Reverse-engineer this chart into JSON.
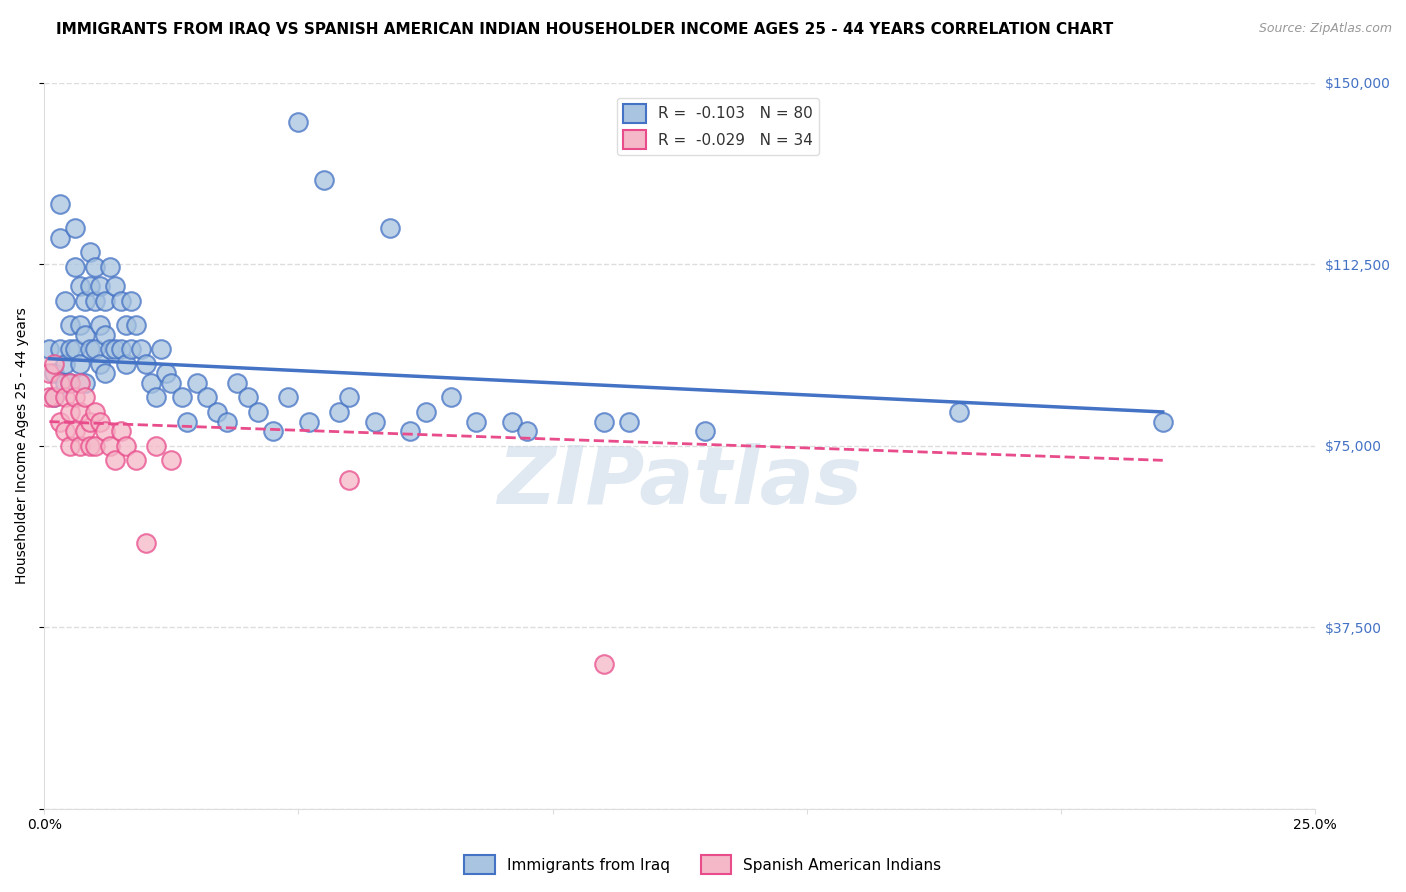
{
  "title": "IMMIGRANTS FROM IRAQ VS SPANISH AMERICAN INDIAN HOUSEHOLDER INCOME AGES 25 - 44 YEARS CORRELATION CHART",
  "source": "Source: ZipAtlas.com",
  "ylabel": "Householder Income Ages 25 - 44 years",
  "xmin": 0.0,
  "xmax": 0.25,
  "ymin": 0,
  "ymax": 150000,
  "yticks": [
    0,
    37500,
    75000,
    112500,
    150000
  ],
  "ytick_labels": [
    "",
    "$37,500",
    "$75,000",
    "$112,500",
    "$150,000"
  ],
  "xticks": [
    0.0,
    0.05,
    0.1,
    0.15,
    0.2,
    0.25
  ],
  "legend_r1": "-0.103",
  "legend_n1": "N = 80",
  "legend_r2": "-0.029",
  "legend_n2": "N = 34",
  "watermark": "ZIPatlas",
  "blue_scatter_x": [
    0.001,
    0.002,
    0.002,
    0.003,
    0.003,
    0.003,
    0.004,
    0.004,
    0.004,
    0.005,
    0.005,
    0.005,
    0.006,
    0.006,
    0.006,
    0.007,
    0.007,
    0.007,
    0.008,
    0.008,
    0.008,
    0.009,
    0.009,
    0.009,
    0.01,
    0.01,
    0.01,
    0.011,
    0.011,
    0.011,
    0.012,
    0.012,
    0.012,
    0.013,
    0.013,
    0.014,
    0.014,
    0.015,
    0.015,
    0.016,
    0.016,
    0.017,
    0.017,
    0.018,
    0.019,
    0.02,
    0.021,
    0.022,
    0.023,
    0.024,
    0.025,
    0.027,
    0.028,
    0.03,
    0.032,
    0.034,
    0.036,
    0.038,
    0.04,
    0.042,
    0.045,
    0.048,
    0.052,
    0.058,
    0.065,
    0.072,
    0.08,
    0.092,
    0.11,
    0.13,
    0.05,
    0.055,
    0.06,
    0.068,
    0.075,
    0.085,
    0.095,
    0.115,
    0.18,
    0.22
  ],
  "blue_scatter_y": [
    95000,
    90000,
    85000,
    125000,
    118000,
    95000,
    105000,
    92000,
    88000,
    100000,
    95000,
    88000,
    120000,
    112000,
    95000,
    108000,
    100000,
    92000,
    105000,
    98000,
    88000,
    115000,
    108000,
    95000,
    112000,
    105000,
    95000,
    108000,
    100000,
    92000,
    105000,
    98000,
    90000,
    112000,
    95000,
    108000,
    95000,
    105000,
    95000,
    100000,
    92000,
    105000,
    95000,
    100000,
    95000,
    92000,
    88000,
    85000,
    95000,
    90000,
    88000,
    85000,
    80000,
    88000,
    85000,
    82000,
    80000,
    88000,
    85000,
    82000,
    78000,
    85000,
    80000,
    82000,
    80000,
    78000,
    85000,
    80000,
    80000,
    78000,
    142000,
    130000,
    85000,
    120000,
    82000,
    80000,
    78000,
    80000,
    82000,
    80000
  ],
  "pink_scatter_x": [
    0.001,
    0.001,
    0.002,
    0.002,
    0.003,
    0.003,
    0.004,
    0.004,
    0.005,
    0.005,
    0.005,
    0.006,
    0.006,
    0.007,
    0.007,
    0.007,
    0.008,
    0.008,
    0.009,
    0.009,
    0.01,
    0.01,
    0.011,
    0.012,
    0.013,
    0.014,
    0.015,
    0.016,
    0.018,
    0.02,
    0.022,
    0.025,
    0.06,
    0.11
  ],
  "pink_scatter_y": [
    90000,
    85000,
    92000,
    85000,
    88000,
    80000,
    85000,
    78000,
    88000,
    82000,
    75000,
    85000,
    78000,
    88000,
    82000,
    75000,
    85000,
    78000,
    80000,
    75000,
    82000,
    75000,
    80000,
    78000,
    75000,
    72000,
    78000,
    75000,
    72000,
    55000,
    75000,
    72000,
    68000,
    30000
  ],
  "blue_trendline_x": [
    0.001,
    0.22
  ],
  "blue_trendline_y": [
    93000,
    82000
  ],
  "pink_trendline_x": [
    0.001,
    0.22
  ],
  "pink_trendline_y": [
    80000,
    72000
  ],
  "blue_line_color": "#4472c4",
  "pink_line_color": "#e84c8b",
  "blue_scatter_color": "#a8c4e0",
  "pink_scatter_color": "#f5b8c8",
  "grid_color": "#dddddd",
  "background_color": "#ffffff",
  "title_fontsize": 11,
  "axis_label_fontsize": 10,
  "tick_fontsize": 10,
  "legend_fontsize": 11,
  "bottom_legend": [
    "Immigrants from Iraq",
    "Spanish American Indians"
  ]
}
